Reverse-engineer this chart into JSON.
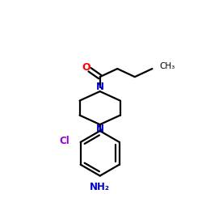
{
  "background_color": "#ffffff",
  "bond_color": "#000000",
  "N_color": "#0000cc",
  "O_color": "#ff0000",
  "Cl_color": "#9900cc",
  "NH2_color": "#0000cc",
  "line_width": 1.6,
  "figsize": [
    2.5,
    2.5
  ],
  "dpi": 100,
  "xlim": [
    0.05,
    0.95
  ],
  "ylim": [
    0.03,
    0.97
  ]
}
